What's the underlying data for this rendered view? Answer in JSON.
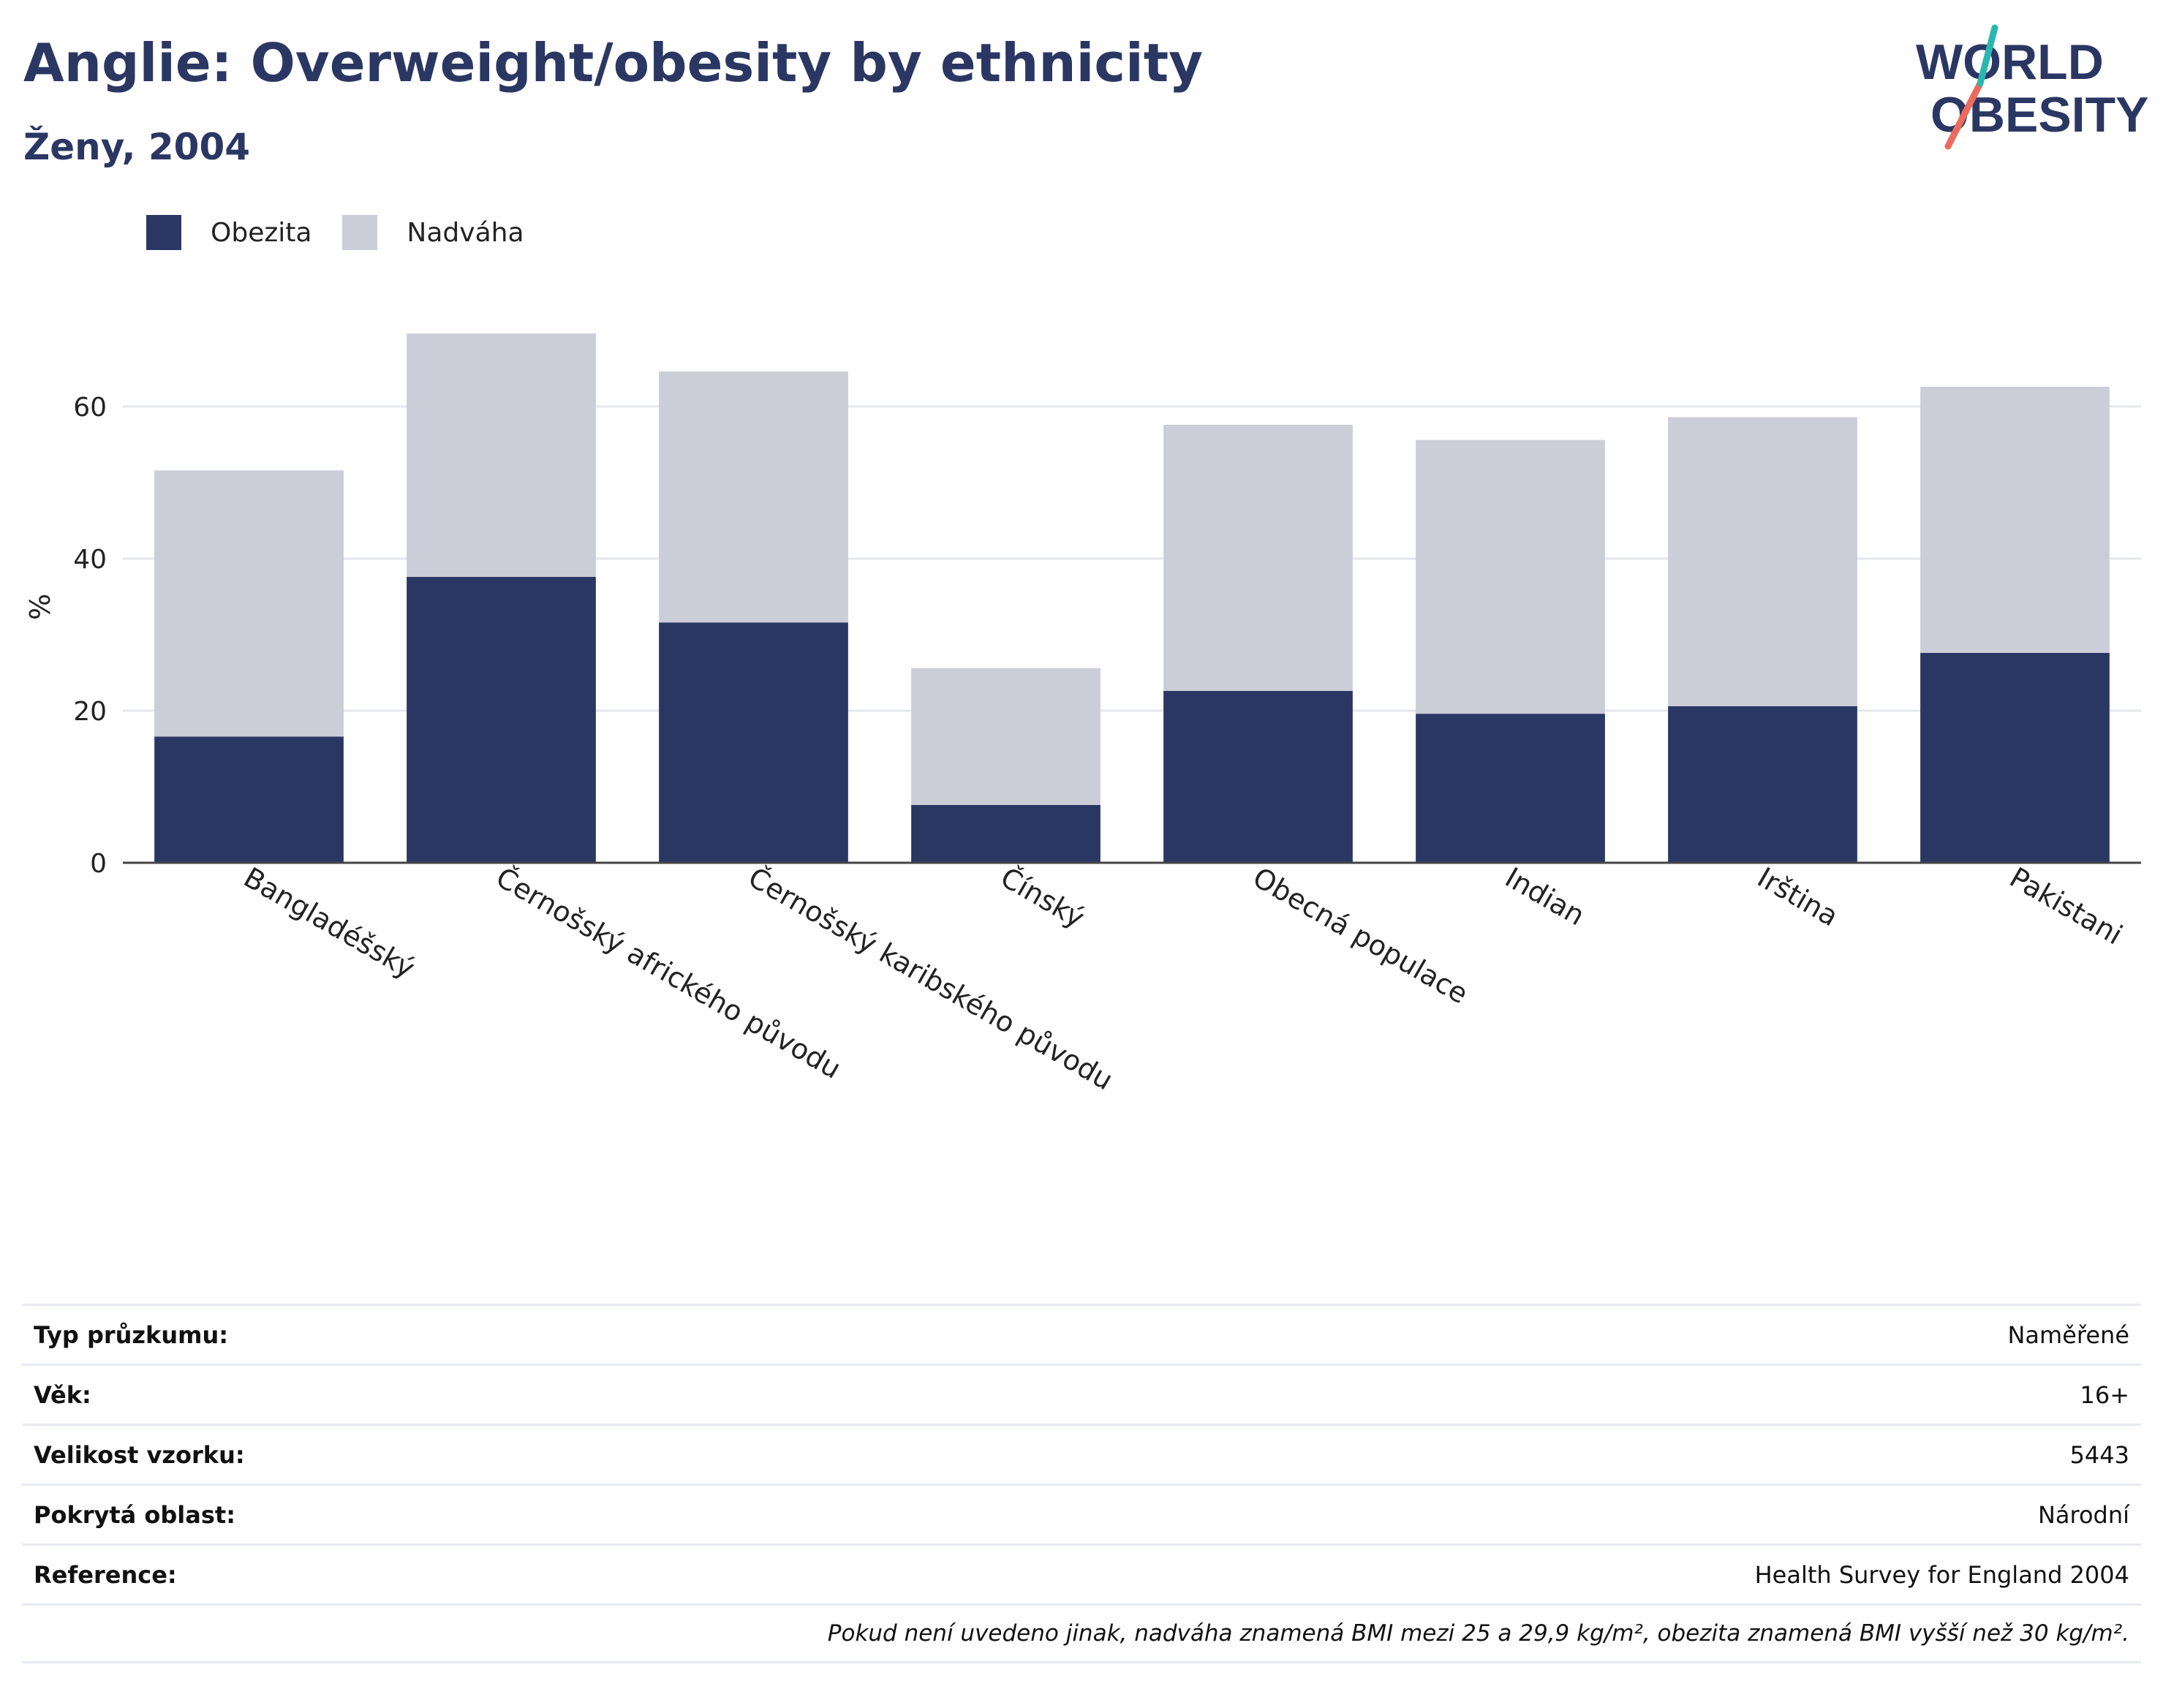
{
  "header": {
    "title": "Anglie: Overweight/obesity by ethnicity",
    "subtitle": "Ženy, 2004",
    "logo_line1": "WORLD",
    "logo_line2": "OBESITY"
  },
  "colors": {
    "obesity": "#2b3763",
    "overweight": "#cbcdd8",
    "accent_teal": "#2ab7b0",
    "accent_coral": "#ec6b5d"
  },
  "legend": [
    {
      "label": "Obezita",
      "color": "#2b3763"
    },
    {
      "label": "Nadváha",
      "color": "#cbcdd8"
    }
  ],
  "chart_data": {
    "type": "bar",
    "stacked": true,
    "title": "Anglie: Overweight/obesity by ethnicity",
    "subtitle": "Ženy, 2004",
    "ylabel": "%",
    "ylim": [
      0,
      70
    ],
    "yticks": [
      0,
      20,
      40,
      60
    ],
    "grid": true,
    "legend_position": "top-left",
    "categories": [
      "Bangladéšský",
      "Černošský afrického původu",
      "Černošský karibského původu",
      "Čínský",
      "Obecná populace",
      "Indian",
      "Irština",
      "Pakistani"
    ],
    "series": [
      {
        "name": "Obezita",
        "values": [
          16.6,
          37.6,
          31.6,
          7.6,
          22.6,
          19.6,
          20.6,
          27.6
        ]
      },
      {
        "name": "Nadváha",
        "values": [
          35.0,
          32.0,
          33.0,
          18.0,
          35.0,
          36.0,
          38.0,
          35.0
        ]
      }
    ]
  },
  "info_table": [
    {
      "key": "Typ průzkumu:",
      "value": "Naměřené"
    },
    {
      "key": "Věk:",
      "value": "16+"
    },
    {
      "key": "Velikost vzorku:",
      "value": "5443"
    },
    {
      "key": "Pokrytá oblast:",
      "value": "Národní"
    },
    {
      "key": "Reference:",
      "value": "Health Survey for England 2004"
    }
  ],
  "footnote": "Pokud není uvedeno jinak, nadváha znamená BMI mezi 25 a 29,9 kg/m², obezita znamená BMI vyšší než 30 kg/m²."
}
